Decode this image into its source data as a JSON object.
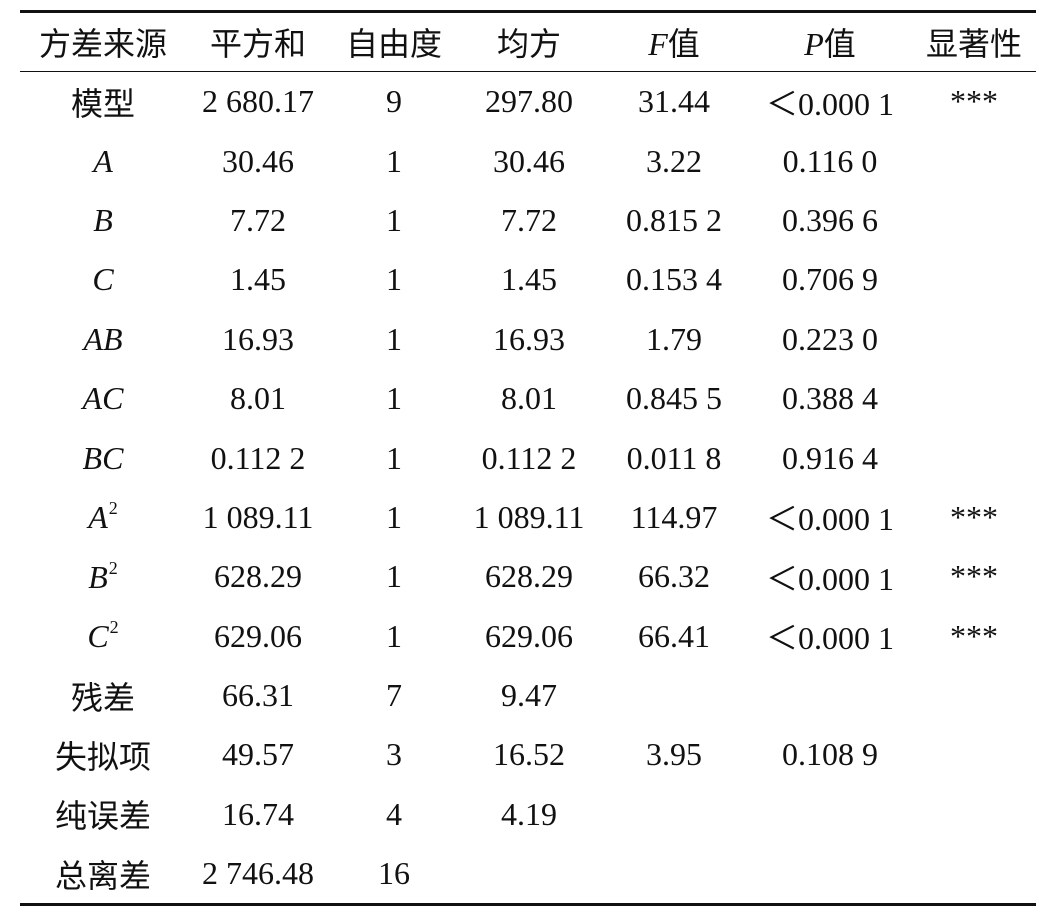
{
  "headers": {
    "source": "方差来源",
    "ss": "平方和",
    "df": "自由度",
    "ms": "均方",
    "f_letter": "F",
    "f_suffix": "值",
    "p_letter": "P",
    "p_suffix": "值",
    "sig": "显著性"
  },
  "rows": [
    {
      "source": "模型",
      "sup": "",
      "italic": false,
      "ss": "2 680.17",
      "df": "9",
      "ms": "297.80",
      "f": "31.44",
      "p": "<0.000 1",
      "sig": "***"
    },
    {
      "source": "A",
      "sup": "",
      "italic": true,
      "ss": "30.46",
      "df": "1",
      "ms": "30.46",
      "f": "3.22",
      "p": "0.116 0",
      "sig": ""
    },
    {
      "source": "B",
      "sup": "",
      "italic": true,
      "ss": "7.72",
      "df": "1",
      "ms": "7.72",
      "f": "0.815 2",
      "p": "0.396 6",
      "sig": ""
    },
    {
      "source": "C",
      "sup": "",
      "italic": true,
      "ss": "1.45",
      "df": "1",
      "ms": "1.45",
      "f": "0.153 4",
      "p": "0.706 9",
      "sig": ""
    },
    {
      "source": "AB",
      "sup": "",
      "italic": true,
      "ss": "16.93",
      "df": "1",
      "ms": "16.93",
      "f": "1.79",
      "p": "0.223 0",
      "sig": ""
    },
    {
      "source": "AC",
      "sup": "",
      "italic": true,
      "ss": "8.01",
      "df": "1",
      "ms": "8.01",
      "f": "0.845 5",
      "p": "0.388 4",
      "sig": ""
    },
    {
      "source": "BC",
      "sup": "",
      "italic": true,
      "ss": "0.112 2",
      "df": "1",
      "ms": "0.112 2",
      "f": "0.011 8",
      "p": "0.916 4",
      "sig": ""
    },
    {
      "source": "A",
      "sup": "2",
      "italic": true,
      "ss": "1 089.11",
      "df": "1",
      "ms": "1 089.11",
      "f": "114.97",
      "p": "<0.000 1",
      "sig": "***"
    },
    {
      "source": "B",
      "sup": "2",
      "italic": true,
      "ss": "628.29",
      "df": "1",
      "ms": "628.29",
      "f": "66.32",
      "p": "<0.000 1",
      "sig": "***"
    },
    {
      "source": "C",
      "sup": "2",
      "italic": true,
      "ss": "629.06",
      "df": "1",
      "ms": "629.06",
      "f": "66.41",
      "p": "<0.000 1",
      "sig": "***"
    },
    {
      "source": "残差",
      "sup": "",
      "italic": false,
      "ss": "66.31",
      "df": "7",
      "ms": "9.47",
      "f": "",
      "p": "",
      "sig": ""
    },
    {
      "source": "失拟项",
      "sup": "",
      "italic": false,
      "ss": "49.57",
      "df": "3",
      "ms": "16.52",
      "f": "3.95",
      "p": "0.108 9",
      "sig": ""
    },
    {
      "source": "纯误差",
      "sup": "",
      "italic": false,
      "ss": "16.74",
      "df": "4",
      "ms": "4.19",
      "f": "",
      "p": "",
      "sig": ""
    },
    {
      "source": "总离差",
      "sup": "",
      "italic": false,
      "ss": "2 746.48",
      "df": "16",
      "ms": "",
      "f": "",
      "p": "",
      "sig": ""
    }
  ]
}
